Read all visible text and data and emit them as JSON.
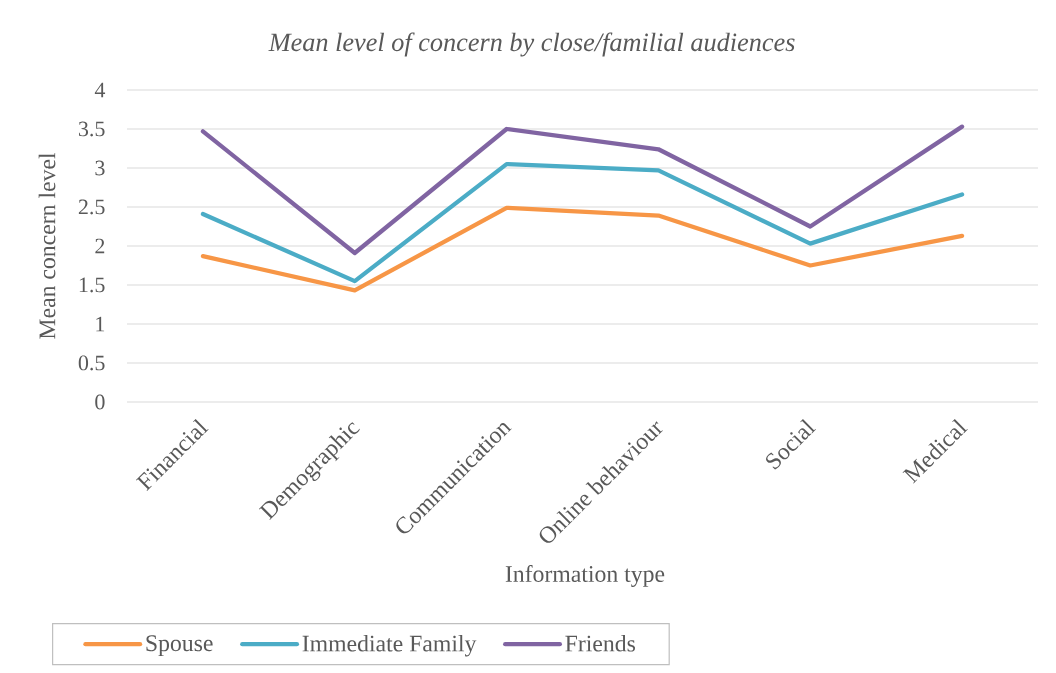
{
  "chart_data": {
    "type": "line",
    "title": "Mean level of concern by close/familial audiences",
    "xlabel": "Information type",
    "ylabel": "Mean concern level",
    "categories": [
      "Financial",
      "Demographic",
      "Communication",
      "Online behaviour",
      "Social",
      "Medical"
    ],
    "series": [
      {
        "name": "Spouse",
        "color": "#f79646",
        "values": [
          1.87,
          1.43,
          2.49,
          2.39,
          1.75,
          2.13
        ]
      },
      {
        "name": "Immediate Family",
        "color": "#4bacc6",
        "values": [
          2.41,
          1.55,
          3.05,
          2.97,
          2.03,
          2.66
        ]
      },
      {
        "name": "Friends",
        "color": "#8064a2",
        "values": [
          3.47,
          1.91,
          3.5,
          3.24,
          2.25,
          3.53
        ]
      }
    ],
    "ylim": [
      0,
      4
    ],
    "yticks": [
      0,
      0.5,
      1,
      1.5,
      2,
      2.5,
      3,
      3.5,
      4
    ],
    "grid": "y",
    "legend": "bottom",
    "marker": "none",
    "line_style": "solid"
  }
}
